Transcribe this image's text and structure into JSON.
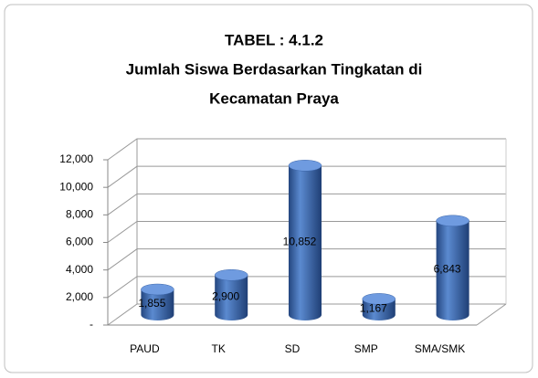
{
  "chart_data": {
    "type": "bar3d",
    "title": [
      "TABEL : 4.1.2",
      "Jumlah Siswa Berdasarkan  Tingkatan di",
      "Kecamatan Praya"
    ],
    "categories": [
      "PAUD",
      "TK",
      "SD",
      "SMP",
      "SMA/SMK"
    ],
    "values": [
      1855,
      2900,
      10852,
      1167,
      6843
    ],
    "value_labels": [
      "1,855",
      "2,900",
      "10,852",
      "1,167",
      "6,843"
    ],
    "color": "#3d6bb3",
    "ylim": [
      0,
      12000
    ],
    "yticks": [
      {
        "value": 0,
        "label": "-"
      },
      {
        "value": 2000,
        "label": "2,000"
      },
      {
        "value": 4000,
        "label": "4,000"
      },
      {
        "value": 6000,
        "label": "6,000"
      },
      {
        "value": 8000,
        "label": "8,000"
      },
      {
        "value": 10000,
        "label": "10,000"
      },
      {
        "value": 12000,
        "label": "12,000"
      }
    ],
    "grid": true
  }
}
